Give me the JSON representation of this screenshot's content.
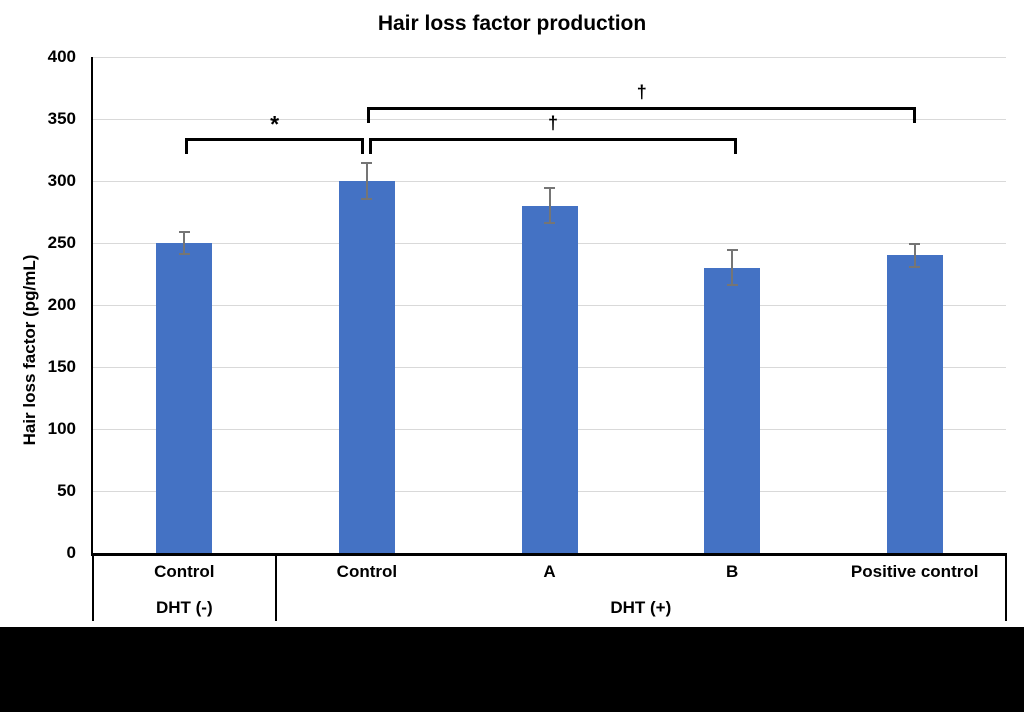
{
  "chart_data": {
    "type": "bar",
    "title": "Hair loss factor production",
    "ylabel": "Hair loss factor (pg/mL)",
    "xlabel": "",
    "ylim": [
      0,
      400
    ],
    "ytick_step": 50,
    "grid": true,
    "legend": false,
    "categories": [
      "Control",
      "Control",
      "A",
      "B",
      "Positive control"
    ],
    "group_labels": [
      {
        "label": "DHT (-)",
        "start": 0,
        "end": 1
      },
      {
        "label": "DHT (+)",
        "start": 1,
        "end": 5
      }
    ],
    "series": [
      {
        "name": "Hair loss factor (pg/mL)",
        "values": [
          250,
          300,
          280,
          230,
          240
        ],
        "errors": [
          10,
          15,
          15,
          15,
          10
        ]
      }
    ],
    "significance_brackets": [
      {
        "label": "*",
        "from_bar": 0,
        "to_bar": 1,
        "y": 335
      },
      {
        "label": "†",
        "from_bar": 1,
        "to_bar": 3,
        "y": 335
      },
      {
        "label": "†",
        "from_bar": 1,
        "to_bar": 4,
        "y": 360
      }
    ],
    "colors": {
      "bar": "#4472C4",
      "error_bar": "#757575",
      "gridline": "#D9D9D9",
      "axis": "#000000",
      "text": "#000000",
      "background": "#FFFFFF",
      "footer_band": "#000000"
    }
  }
}
